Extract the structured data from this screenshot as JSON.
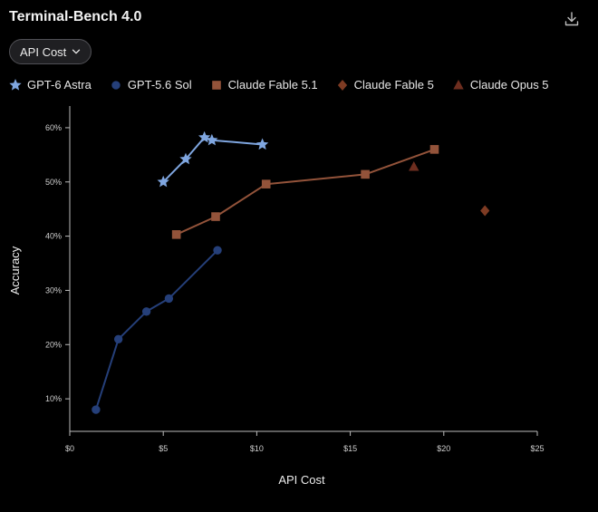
{
  "header": {
    "title": "Terminal-Bench 4.0",
    "download_icon": "download-icon"
  },
  "controls": {
    "metric_select_label": "API Cost",
    "metric_select_icon": "chevron-down-icon"
  },
  "colors": {
    "background": "#000000",
    "axis": "#bdbdbd",
    "gpt6": "#7fa6e0",
    "gpt56": "#253f79",
    "fable51": "#93533a",
    "fable5": "#7e3b23",
    "opus5": "#6e2e1f"
  },
  "chart_data": {
    "type": "scatter",
    "xlabel": "API Cost",
    "ylabel": "Accuracy",
    "xlim": [
      0,
      25
    ],
    "ylim": [
      4,
      64
    ],
    "x_ticks": [
      0,
      5,
      10,
      15,
      20,
      25
    ],
    "x_tick_labels": [
      "$0",
      "$5",
      "$10",
      "$15",
      "$20",
      "$25"
    ],
    "y_ticks": [
      10,
      20,
      30,
      40,
      50,
      60
    ],
    "y_tick_labels": [
      "10%",
      "20%",
      "30%",
      "40%",
      "50%",
      "60%"
    ],
    "grid": false,
    "legend_position": "top",
    "series": [
      {
        "name": "GPT-6 Astra",
        "marker": "star",
        "connected": true,
        "color": "#7fa6e0",
        "points": [
          [
            5.0,
            50.0
          ],
          [
            6.2,
            54.2
          ],
          [
            7.2,
            58.2
          ],
          [
            7.6,
            57.7
          ],
          [
            10.3,
            56.9
          ]
        ]
      },
      {
        "name": "GPT-5.6 Sol",
        "marker": "circle",
        "connected": true,
        "color": "#253f79",
        "points": [
          [
            1.4,
            8.0
          ],
          [
            2.6,
            21.0
          ],
          [
            4.1,
            26.1
          ],
          [
            5.3,
            28.5
          ],
          [
            7.9,
            37.4
          ]
        ]
      },
      {
        "name": "Claude Fable 5.1",
        "marker": "square",
        "connected": true,
        "color": "#93533a",
        "points": [
          [
            5.7,
            40.3
          ],
          [
            7.8,
            43.6
          ],
          [
            10.5,
            49.6
          ],
          [
            15.8,
            51.4
          ],
          [
            19.5,
            56.0
          ]
        ]
      },
      {
        "name": "Claude Fable 5",
        "marker": "diamond",
        "connected": false,
        "color": "#7e3b23",
        "points": [
          [
            22.2,
            44.7
          ]
        ]
      },
      {
        "name": "Claude Opus 5",
        "marker": "triangle",
        "connected": false,
        "color": "#6e2e1f",
        "points": [
          [
            18.4,
            52.8
          ]
        ]
      }
    ]
  }
}
